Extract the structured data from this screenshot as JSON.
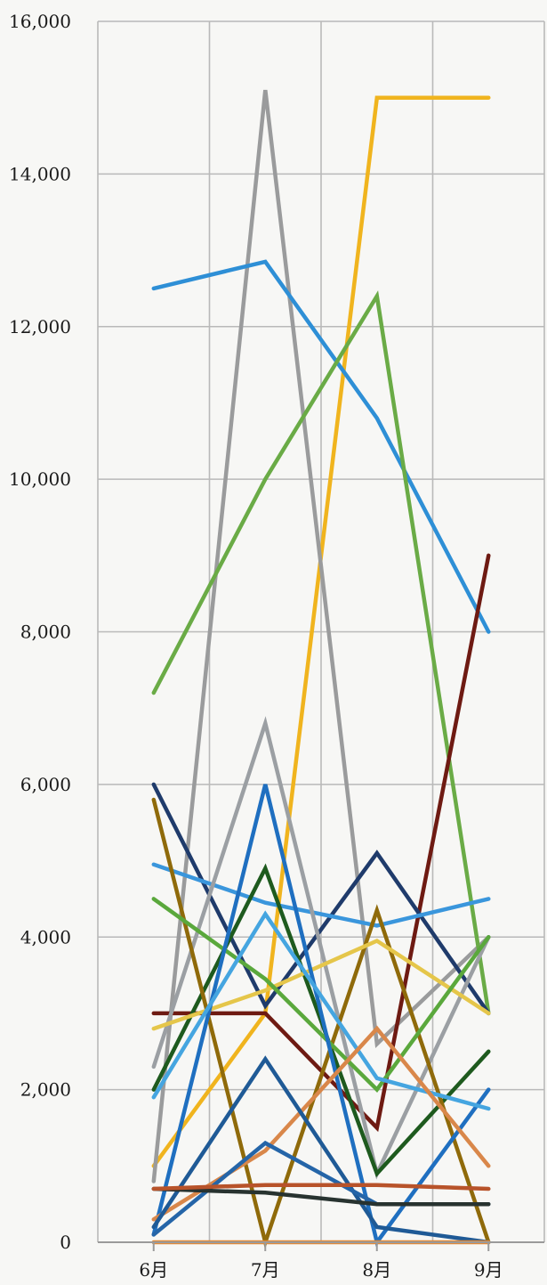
{
  "chart_data": {
    "type": "line",
    "title": "",
    "xlabel": "",
    "ylabel": "",
    "categories": [
      "6月",
      "7月",
      "8月",
      "9月"
    ],
    "ylim": [
      0,
      16000
    ],
    "yticks": [
      0,
      2000,
      4000,
      6000,
      8000,
      10000,
      12000,
      14000,
      16000
    ],
    "ytick_labels": [
      "0",
      "2,000",
      "4,000",
      "6,000",
      "8,000",
      "10,000",
      "12,000",
      "14,000",
      "16,000"
    ],
    "grid": true,
    "legend": "none",
    "series": [
      {
        "color": "#f0b41e",
        "values": [
          1000,
          3000,
          15000,
          15000
        ]
      },
      {
        "color": "#9a9b9c",
        "values": [
          800,
          15100,
          2600,
          4000
        ]
      },
      {
        "color": "#2e8fd6",
        "values": [
          12500,
          12850,
          10800,
          8000
        ]
      },
      {
        "color": "#6aab46",
        "values": [
          7200,
          10000,
          12400,
          3000
        ]
      },
      {
        "color": "#6e1a12",
        "values": [
          3000,
          3000,
          1500,
          9000
        ]
      },
      {
        "color": "#1f3b6b",
        "values": [
          6000,
          3100,
          5100,
          3000
        ]
      },
      {
        "color": "#3a96dc",
        "values": [
          4950,
          4450,
          4150,
          4500
        ]
      },
      {
        "color": "#9b9fa3",
        "values": [
          2300,
          6800,
          900,
          4000
        ]
      },
      {
        "color": "#1e5a1e",
        "values": [
          2000,
          4900,
          900,
          2500
        ]
      },
      {
        "color": "#8f6a0a",
        "values": [
          5800,
          0,
          4350,
          0
        ]
      },
      {
        "color": "#e5c64a",
        "values": [
          2800,
          3300,
          3950,
          3000
        ]
      },
      {
        "color": "#5aa83c",
        "values": [
          4500,
          3450,
          2000,
          4000
        ]
      },
      {
        "color": "#1f6fc0",
        "values": [
          100,
          6000,
          0,
          2000
        ]
      },
      {
        "color": "#45a5e0",
        "values": [
          1900,
          4300,
          2150,
          1750
        ]
      },
      {
        "color": "#d9874a",
        "values": [
          300,
          1200,
          2800,
          1000
        ]
      },
      {
        "color": "#1f5a96",
        "values": [
          200,
          2400,
          200,
          0
        ]
      },
      {
        "color": "#2565a8",
        "values": [
          100,
          1300,
          500,
          500
        ]
      },
      {
        "color": "#283330",
        "values": [
          700,
          650,
          500,
          500
        ]
      },
      {
        "color": "#b8532a",
        "values": [
          700,
          750,
          750,
          700
        ]
      },
      {
        "color": "#e08a3a",
        "values": [
          0,
          0,
          0,
          0
        ]
      }
    ]
  }
}
